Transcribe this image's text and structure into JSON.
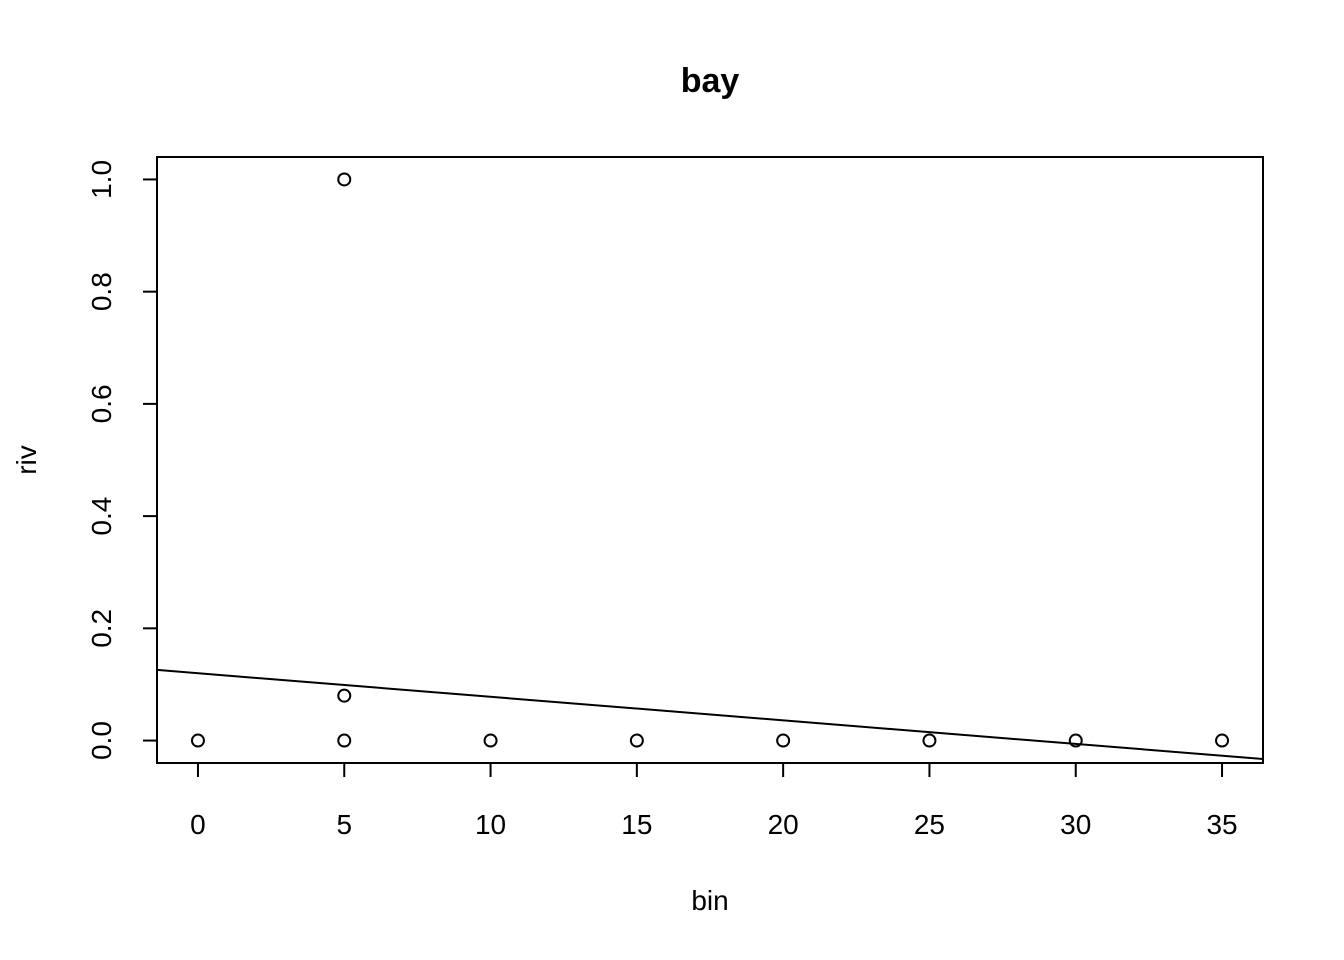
{
  "chart_data": {
    "type": "scatter",
    "title": "bay",
    "xlabel": "bin",
    "ylabel": "riv",
    "xlim": [
      -1.4,
      36.4
    ],
    "ylim": [
      -0.04,
      1.04
    ],
    "x_ticks": [
      0,
      5,
      10,
      15,
      20,
      25,
      30,
      35
    ],
    "y_ticks": [
      0.0,
      0.2,
      0.4,
      0.6,
      0.8,
      1.0
    ],
    "x_tick_labels": [
      "0",
      "5",
      "10",
      "15",
      "20",
      "25",
      "30",
      "35"
    ],
    "y_tick_labels": [
      "0.0",
      "0.2",
      "0.4",
      "0.6",
      "0.8",
      "1.0"
    ],
    "grid": false,
    "points": [
      {
        "x": 0,
        "y": 0.0
      },
      {
        "x": 5,
        "y": 1.0
      },
      {
        "x": 5,
        "y": 0.08
      },
      {
        "x": 5,
        "y": 0.0
      },
      {
        "x": 10,
        "y": 0.0
      },
      {
        "x": 15,
        "y": 0.0
      },
      {
        "x": 20,
        "y": 0.0
      },
      {
        "x": 25,
        "y": 0.0
      },
      {
        "x": 30,
        "y": 0.0
      },
      {
        "x": 35,
        "y": 0.0
      }
    ],
    "fit_line": {
      "intercept": 0.12,
      "slope": -0.0042
    }
  }
}
